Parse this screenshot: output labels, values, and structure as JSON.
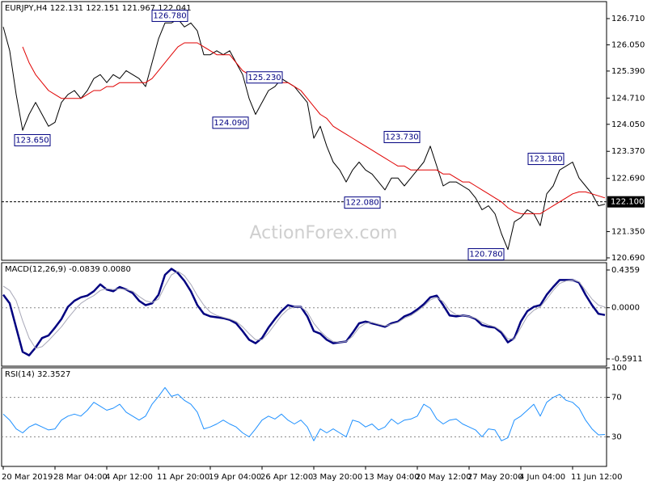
{
  "chart_data": [
    {
      "type": "line",
      "title": "EURJPY,H4  122.131 122.151 121.967 122.041",
      "watermark": "ActionForex.com",
      "categories": [
        "20 Mar 2019",
        null,
        null,
        null,
        null,
        null,
        null,
        null,
        "28 Mar 04:00",
        null,
        null,
        null,
        null,
        null,
        null,
        null,
        "4 Apr 12:00",
        null,
        null,
        null,
        null,
        null,
        null,
        null,
        "11 Apr 20:00",
        null,
        null,
        null,
        null,
        null,
        null,
        null,
        "19 Apr 04:00",
        null,
        null,
        null,
        null,
        null,
        null,
        null,
        "26 Apr 12:00",
        null,
        null,
        null,
        null,
        null,
        null,
        null,
        "3 May 20:00",
        null,
        null,
        null,
        null,
        null,
        null,
        null,
        "13 May 04:00",
        null,
        null,
        null,
        null,
        null,
        null,
        null,
        "20 May 12:00",
        null,
        null,
        null,
        null,
        null,
        null,
        null,
        "27 May 20:00",
        null,
        null,
        null,
        null,
        null,
        null,
        null,
        "4 Jun 04:00",
        null,
        null,
        null,
        null,
        null,
        null,
        null,
        "11 Jun 12:00",
        null,
        null,
        null,
        null,
        null
      ],
      "series": [
        {
          "color": "#000000",
          "values": [
            126.5,
            125.9,
            124.8,
            123.9,
            124.3,
            124.6,
            124.3,
            124.0,
            124.1,
            124.6,
            124.8,
            124.9,
            124.7,
            124.9,
            125.2,
            125.3,
            125.1,
            125.3,
            125.2,
            125.4,
            125.3,
            125.2,
            125.0,
            125.6,
            126.2,
            126.6,
            126.6,
            126.7,
            126.5,
            126.6,
            126.4,
            125.8,
            125.8,
            125.9,
            125.8,
            125.9,
            125.6,
            125.3,
            124.7,
            124.3,
            124.6,
            124.9,
            125.0,
            125.2,
            125.1,
            125.0,
            124.8,
            124.6,
            123.7,
            124.0,
            123.5,
            123.1,
            122.9,
            122.6,
            122.9,
            123.1,
            122.9,
            122.8,
            122.6,
            122.4,
            122.7,
            122.7,
            122.5,
            122.7,
            122.9,
            123.1,
            123.5,
            123.0,
            122.5,
            122.6,
            122.6,
            122.5,
            122.4,
            122.2,
            121.9,
            122.0,
            121.8,
            121.3,
            120.9,
            121.6,
            121.7,
            121.9,
            121.8,
            121.5,
            122.3,
            122.5,
            122.9,
            123.0,
            123.1,
            122.7,
            122.5,
            122.3,
            122.0,
            122.041
          ]
        },
        {
          "color": "#e00000",
          "values": [
            null,
            null,
            null,
            126.0,
            125.6,
            125.3,
            125.1,
            124.9,
            124.8,
            124.7,
            124.7,
            124.7,
            124.7,
            124.8,
            124.9,
            124.9,
            125.0,
            125.0,
            125.1,
            125.1,
            125.1,
            125.1,
            125.1,
            125.2,
            125.4,
            125.6,
            125.8,
            126.0,
            126.1,
            126.1,
            126.1,
            126.0,
            125.9,
            125.8,
            125.8,
            125.8,
            125.6,
            125.4,
            125.3,
            125.2,
            125.1,
            125.1,
            125.1,
            125.1,
            125.1,
            125.0,
            124.9,
            124.7,
            124.5,
            124.3,
            124.2,
            124.0,
            123.9,
            123.8,
            123.7,
            123.6,
            123.5,
            123.4,
            123.3,
            123.2,
            123.1,
            123.0,
            123.0,
            122.9,
            122.9,
            122.9,
            122.9,
            122.9,
            122.8,
            122.8,
            122.7,
            122.6,
            122.6,
            122.5,
            122.4,
            122.3,
            122.2,
            122.1,
            121.95,
            121.85,
            121.8,
            121.8,
            121.8,
            121.8,
            121.9,
            122.0,
            122.1,
            122.2,
            122.3,
            122.35,
            122.35,
            122.3,
            122.25,
            122.2
          ]
        }
      ],
      "ylim": [
        120.629,
        127.137
      ],
      "yticks": [
        {
          "value": 126.71,
          "label": "126.710"
        },
        {
          "value": 126.05,
          "label": "126.050"
        },
        {
          "value": 125.39,
          "label": "125.390"
        },
        {
          "value": 124.71,
          "label": "124.710"
        },
        {
          "value": 124.05,
          "label": "124.050"
        },
        {
          "value": 123.37,
          "label": "123.370"
        },
        {
          "value": 122.69,
          "label": "122.690"
        },
        {
          "value": 121.35,
          "label": "121.350"
        },
        {
          "value": 120.69,
          "label": "120.690"
        }
      ],
      "current": {
        "value": 122.1,
        "label": "122.100"
      },
      "annotations": [
        {
          "value": 126.78,
          "label": "126.780"
        },
        {
          "value": 123.65,
          "label": "123.650"
        },
        {
          "value": 124.09,
          "label": "124.090"
        },
        {
          "value": 125.23,
          "label": "125.230"
        },
        {
          "value": 123.73,
          "label": "123.730"
        },
        {
          "value": 122.08,
          "label": "122.080"
        },
        {
          "value": 120.78,
          "label": "120.780"
        },
        {
          "value": 123.18,
          "label": "123.180"
        }
      ]
    },
    {
      "type": "line",
      "title": "MACD(12,26,9) -0.0839 0.0080",
      "series": [
        {
          "color": "#000080",
          "width": 2.5,
          "values": [
            0.15,
            0.05,
            -0.23,
            -0.51,
            -0.55,
            -0.46,
            -0.35,
            -0.32,
            -0.23,
            -0.13,
            0.01,
            0.08,
            0.12,
            0.14,
            0.19,
            0.27,
            0.21,
            0.19,
            0.24,
            0.21,
            0.17,
            0.08,
            0.03,
            0.05,
            0.15,
            0.38,
            0.45,
            0.4,
            0.31,
            0.19,
            0.03,
            -0.07,
            -0.1,
            -0.11,
            -0.12,
            -0.14,
            -0.18,
            -0.27,
            -0.37,
            -0.41,
            -0.35,
            -0.23,
            -0.13,
            -0.04,
            0.03,
            0.01,
            0.01,
            -0.1,
            -0.27,
            -0.3,
            -0.37,
            -0.41,
            -0.4,
            -0.39,
            -0.29,
            -0.18,
            -0.16,
            -0.18,
            -0.2,
            -0.22,
            -0.18,
            -0.16,
            -0.1,
            -0.07,
            -0.02,
            0.04,
            0.12,
            0.14,
            0.03,
            -0.09,
            -0.1,
            -0.09,
            -0.1,
            -0.13,
            -0.2,
            -0.22,
            -0.23,
            -0.29,
            -0.4,
            -0.35,
            -0.16,
            -0.04,
            0.01,
            0.03,
            0.15,
            0.24,
            0.32,
            0.32,
            0.32,
            0.29,
            0.15,
            0.03,
            -0.07,
            -0.0839
          ]
        },
        {
          "color": "#a8a8b8",
          "width": 1,
          "values": [
            0.25,
            0.2,
            0.08,
            -0.15,
            -0.35,
            -0.47,
            -0.45,
            -0.38,
            -0.3,
            -0.22,
            -0.12,
            -0.03,
            0.05,
            0.1,
            0.14,
            0.2,
            0.22,
            0.21,
            0.22,
            0.21,
            0.19,
            0.13,
            0.08,
            0.06,
            0.1,
            0.25,
            0.38,
            0.42,
            0.37,
            0.27,
            0.14,
            0.03,
            -0.05,
            -0.09,
            -0.11,
            -0.13,
            -0.16,
            -0.22,
            -0.3,
            -0.37,
            -0.37,
            -0.29,
            -0.19,
            -0.09,
            -0.02,
            0.01,
            0.01,
            -0.05,
            -0.18,
            -0.27,
            -0.34,
            -0.39,
            -0.4,
            -0.39,
            -0.33,
            -0.23,
            -0.18,
            -0.17,
            -0.19,
            -0.21,
            -0.19,
            -0.17,
            -0.12,
            -0.09,
            -0.04,
            0.02,
            0.09,
            0.12,
            0.07,
            -0.03,
            -0.08,
            -0.09,
            -0.1,
            -0.12,
            -0.17,
            -0.2,
            -0.22,
            -0.27,
            -0.36,
            -0.36,
            -0.23,
            -0.1,
            -0.03,
            0.01,
            0.1,
            0.2,
            0.28,
            0.31,
            0.32,
            0.3,
            0.2,
            0.1,
            0.03,
            0.008
          ]
        }
      ],
      "ylim": [
        -0.675,
        0.52
      ],
      "yticks": [
        0.4359,
        {
          "value": 0,
          "label": "0.0000"
        },
        -0.5911
      ],
      "levels": [
        0
      ]
    },
    {
      "type": "line",
      "title": "RSI(14) 32.3527",
      "series": [
        {
          "color": "#1e90ff",
          "width": 1,
          "values": [
            53,
            47,
            38,
            34,
            40,
            43,
            40,
            37,
            38,
            47,
            51,
            53,
            51,
            57,
            65,
            61,
            57,
            59,
            63,
            55,
            51,
            47,
            51,
            63,
            71,
            80,
            71,
            73,
            67,
            63,
            55,
            38,
            40,
            43,
            47,
            43,
            40,
            34,
            30,
            38,
            47,
            51,
            48,
            53,
            47,
            43,
            47,
            40,
            26,
            38,
            34,
            38,
            34,
            30,
            47,
            45,
            40,
            43,
            37,
            40,
            48,
            43,
            47,
            48,
            51,
            63,
            59,
            48,
            43,
            47,
            48,
            43,
            40,
            37,
            30,
            38,
            37,
            26,
            29,
            47,
            51,
            57,
            63,
            51,
            65,
            70,
            73,
            67,
            65,
            59,
            47,
            38,
            32,
            32.3527
          ]
        }
      ],
      "ylim": [
        0,
        100
      ],
      "yticks": [
        100,
        70,
        30
      ],
      "levels": [
        70,
        30
      ]
    }
  ]
}
